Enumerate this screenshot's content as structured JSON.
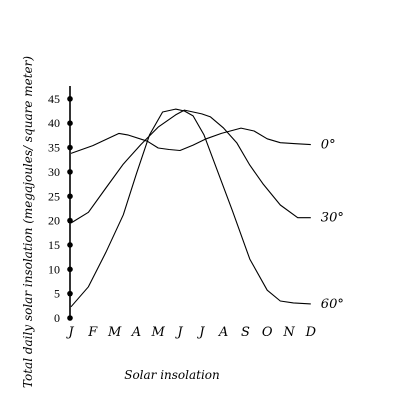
{
  "chart_data": {
    "type": "line",
    "title": "",
    "xlabel": "Solar insolation",
    "ylabel": "Total daily solar insolation (megajoules/ square meter)",
    "categories": [
      "J",
      "F",
      "M",
      "A",
      "M",
      "J",
      "J",
      "A",
      "S",
      "O",
      "N",
      "D"
    ],
    "yticks": [
      0,
      5,
      10,
      15,
      20,
      25,
      30,
      35,
      40,
      45
    ],
    "ylim": [
      0,
      46
    ],
    "grid": false,
    "legend": "none",
    "series": [
      {
        "name": "0°",
        "x": [
          0,
          1,
          2.2,
          2.6,
          3.5,
          4.0,
          4.5,
          5.0,
          5.6,
          6.2,
          6.9,
          7.8,
          8.4,
          9.0,
          9.6,
          10.3,
          11.0
        ],
        "values": [
          33.8,
          35.4,
          37.9,
          37.6,
          36.3,
          34.9,
          34.6,
          34.4,
          35.5,
          36.8,
          37.9,
          39.0,
          38.4,
          36.8,
          36.0,
          35.8,
          35.6
        ]
      },
      {
        "name": "30°",
        "x": [
          0,
          0.8,
          1.6,
          2.4,
          3.2,
          4.0,
          4.8,
          5.2,
          5.6,
          6.0,
          6.4,
          7.0,
          7.6,
          8.2,
          8.8,
          9.6,
          10.4,
          11.0
        ],
        "values": [
          19.5,
          21.7,
          26.7,
          31.6,
          35.6,
          39.2,
          41.7,
          42.7,
          42.3,
          41.9,
          41.3,
          39.0,
          36.0,
          31.4,
          27.6,
          23.2,
          20.6,
          20.6
        ]
      },
      {
        "name": "60°",
        "x": [
          0,
          0.8,
          1.6,
          2.4,
          3.0,
          3.6,
          4.2,
          4.8,
          5.2,
          5.6,
          6.1,
          6.6,
          7.4,
          8.2,
          9.0,
          9.6,
          10.2,
          11.0
        ],
        "values": [
          2.3,
          6.4,
          13.5,
          21.2,
          29.6,
          37.6,
          42.3,
          42.9,
          42.5,
          41.5,
          37.6,
          31.6,
          22.1,
          12.1,
          5.7,
          3.5,
          3.1,
          2.9
        ]
      }
    ]
  }
}
